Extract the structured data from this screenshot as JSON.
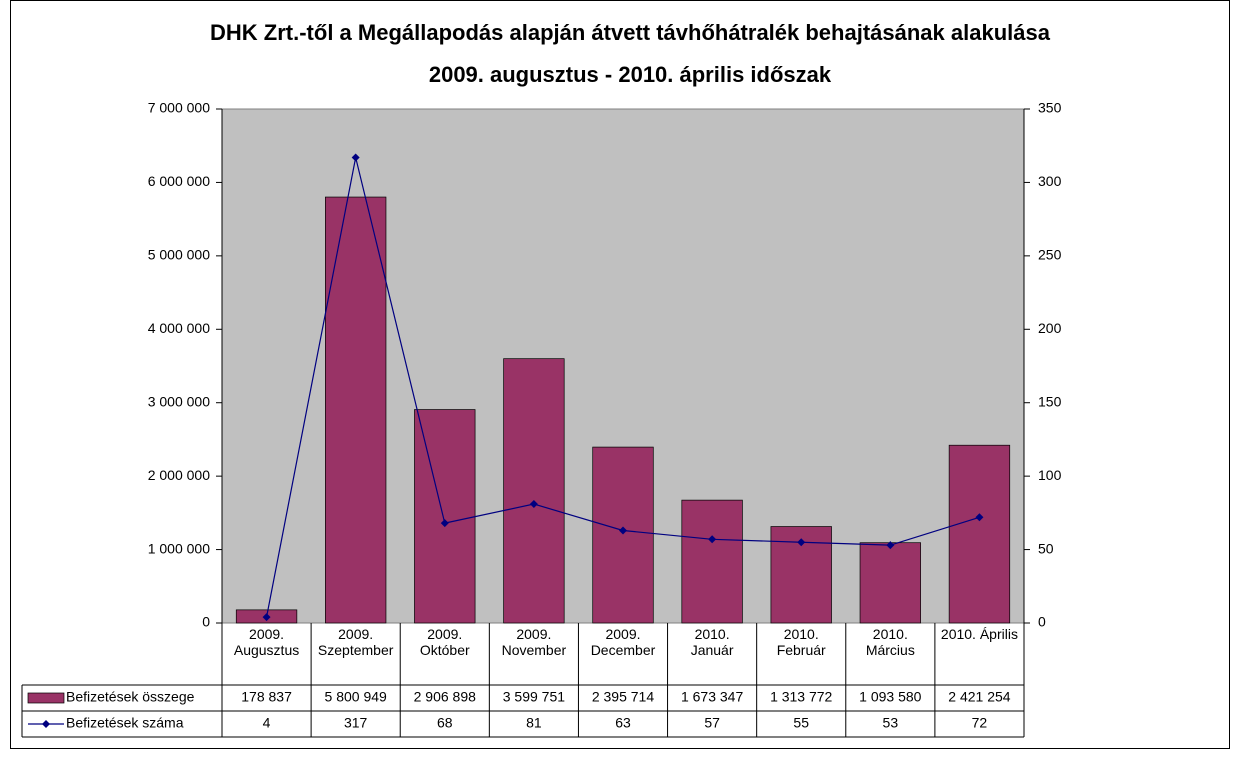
{
  "chart_data": {
    "type": "bar_line",
    "title": "DHK Zrt.-től a Megállapodás alapján átvett távhőhátralék behajtásának alakulása",
    "subtitle": "2009. augusztus - 2010. április időszak",
    "categories": [
      "2009. Augusztus",
      "2009. Szeptember",
      "2009. Október",
      "2009. November",
      "2009. December",
      "2010. Január",
      "2010. Február",
      "2010. Március",
      "2010. Április"
    ],
    "series": [
      {
        "name": "Befizetések összege",
        "type": "bar",
        "color": "#993366",
        "values": [
          178837,
          5800949,
          2906898,
          3599751,
          2395714,
          1673347,
          1313772,
          1093580,
          2421254
        ],
        "value_labels": [
          "178 837",
          "5 800 949",
          "2 906 898",
          "3 599 751",
          "2 395 714",
          "1 673 347",
          "1 313 772",
          "1 093 580",
          "2 421 254"
        ]
      },
      {
        "name": "Befizetések száma",
        "type": "line",
        "axis": "y2",
        "color": "#000080",
        "values": [
          4,
          317,
          68,
          81,
          63,
          57,
          55,
          53,
          72
        ]
      }
    ],
    "ylim": [
      0,
      7000000
    ],
    "yticks": [
      0,
      {
        "value": 1000000,
        "label": "1 000 000"
      },
      {
        "value": 2000000,
        "label": "2 000 000"
      },
      {
        "value": 3000000,
        "label": "3 000 000"
      },
      {
        "value": 4000000,
        "label": "4 000 000"
      },
      {
        "value": 5000000,
        "label": "5 000 000"
      },
      {
        "value": 6000000,
        "label": "6 000 000"
      },
      {
        "value": 7000000,
        "label": "7 000 000"
      }
    ],
    "y2lim": [
      0,
      350
    ],
    "y2ticks": [
      0,
      50,
      100,
      150,
      200,
      250,
      300,
      350
    ],
    "plot_background": "#c0c0c0"
  }
}
